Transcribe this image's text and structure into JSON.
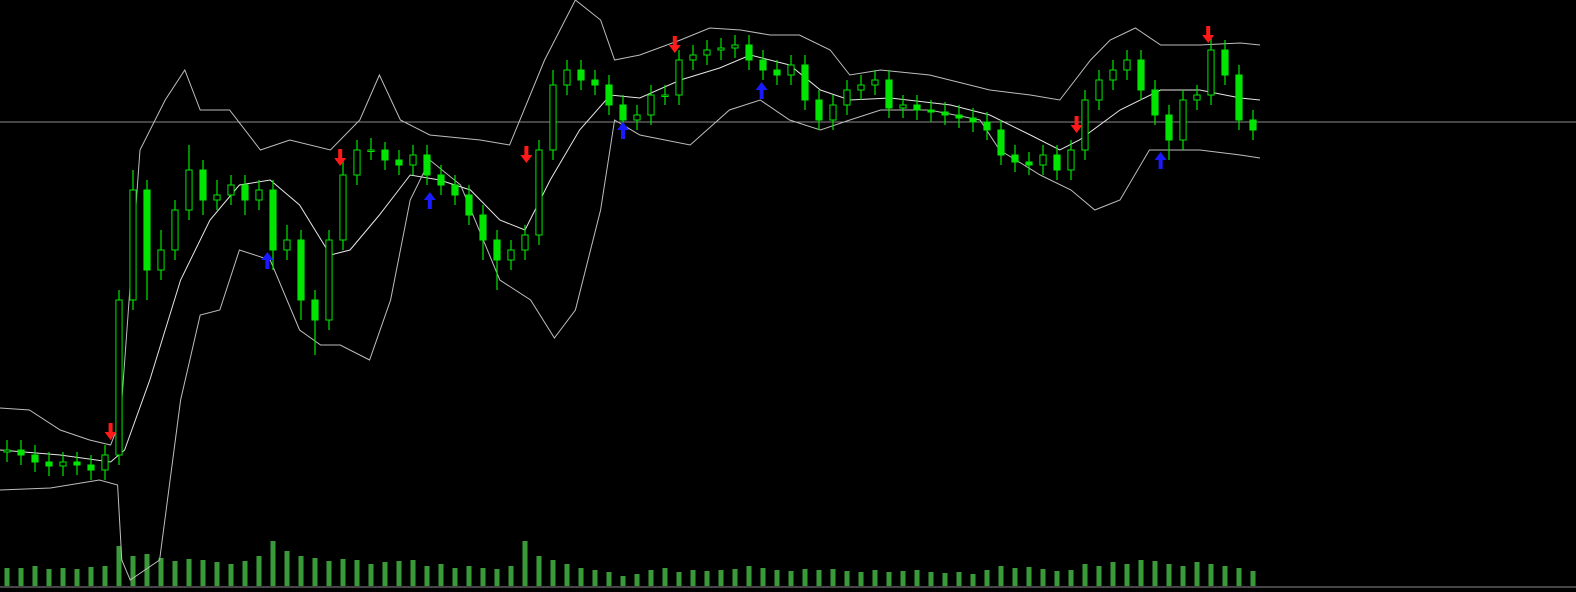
{
  "chart_data": {
    "type": "candlestick",
    "xlim": [
      -0.5,
      89.5
    ],
    "ylim": [
      8,
      600
    ],
    "color": "#00e600",
    "open": [
      148,
      150,
      145,
      138,
      134,
      138,
      135,
      130,
      145,
      300,
      410,
      330,
      350,
      390,
      430,
      400,
      405,
      415,
      400,
      410,
      350,
      360,
      300,
      280,
      360,
      425,
      450,
      450,
      440,
      435,
      445,
      425,
      415,
      405,
      385,
      360,
      340,
      350,
      365,
      450,
      515,
      530,
      520,
      515,
      495,
      480,
      485,
      505,
      505,
      540,
      545,
      550,
      552,
      555,
      540,
      530,
      525,
      535,
      500,
      480,
      495,
      510,
      515,
      520,
      492,
      495,
      490,
      488,
      485,
      482,
      478,
      470,
      445,
      438,
      435,
      445,
      430,
      450,
      500,
      520,
      530,
      540,
      510,
      485,
      460,
      500,
      505,
      550,
      525,
      480
    ],
    "high": [
      160,
      160,
      155,
      148,
      148,
      148,
      145,
      155,
      310,
      430,
      420,
      370,
      400,
      455,
      440,
      420,
      425,
      425,
      420,
      420,
      375,
      370,
      310,
      370,
      440,
      460,
      462,
      458,
      450,
      455,
      455,
      435,
      425,
      415,
      395,
      370,
      360,
      375,
      460,
      530,
      540,
      540,
      530,
      525,
      505,
      495,
      515,
      515,
      550,
      555,
      560,
      562,
      565,
      565,
      550,
      540,
      545,
      545,
      510,
      505,
      520,
      525,
      530,
      530,
      505,
      505,
      500,
      498,
      495,
      492,
      488,
      480,
      455,
      448,
      455,
      455,
      460,
      510,
      530,
      540,
      550,
      550,
      520,
      495,
      510,
      515,
      562,
      560,
      535,
      490
    ],
    "low": [
      138,
      135,
      128,
      124,
      124,
      125,
      120,
      120,
      135,
      290,
      300,
      320,
      340,
      380,
      385,
      390,
      395,
      385,
      390,
      330,
      340,
      280,
      245,
      270,
      350,
      415,
      440,
      430,
      425,
      425,
      415,
      405,
      395,
      375,
      340,
      310,
      330,
      340,
      355,
      440,
      505,
      510,
      505,
      485,
      470,
      470,
      475,
      495,
      495,
      530,
      535,
      540,
      542,
      530,
      520,
      515,
      515,
      490,
      470,
      470,
      485,
      500,
      505,
      482,
      482,
      480,
      478,
      475,
      472,
      468,
      460,
      435,
      428,
      425,
      425,
      420,
      420,
      440,
      490,
      510,
      520,
      500,
      475,
      440,
      450,
      490,
      495,
      515,
      470,
      460
    ],
    "close": [
      150,
      145,
      138,
      134,
      138,
      135,
      130,
      145,
      300,
      410,
      330,
      350,
      390,
      430,
      400,
      405,
      415,
      400,
      410,
      350,
      360,
      300,
      280,
      360,
      425,
      450,
      450,
      440,
      435,
      445,
      425,
      415,
      405,
      385,
      360,
      340,
      350,
      365,
      450,
      515,
      530,
      520,
      515,
      495,
      480,
      485,
      505,
      505,
      540,
      545,
      550,
      552,
      555,
      540,
      530,
      525,
      535,
      500,
      480,
      495,
      510,
      515,
      520,
      492,
      495,
      490,
      488,
      485,
      482,
      478,
      470,
      445,
      438,
      435,
      445,
      430,
      450,
      500,
      520,
      530,
      540,
      510,
      485,
      460,
      500,
      505,
      550,
      525,
      480,
      470
    ],
    "bands": [
      {
        "color": "#bdbdbd",
        "x": [
          -0.5,
          1.6,
          3.8,
          5.9,
          7.4,
          8.1,
          9.5,
          11.3,
          12.7,
          13.8,
          15.9,
          18.1,
          20.2,
          23.1,
          25.2,
          26.6,
          28.1,
          30.2,
          33.8,
          35.9,
          38.4,
          40.6,
          42.4,
          43.4,
          45.2,
          48.1,
          50.2,
          52.4,
          54.5,
          56.6,
          58.8,
          60.2,
          62.4,
          65.9,
          70.2,
          73.1,
          75.2,
          77.4,
          78.8,
          80.6,
          82.4,
          85.2,
          88.1,
          89.5
        ],
        "values": [
          192,
          190,
          170,
          160,
          155,
          180,
          450,
          500,
          530,
          490,
          490,
          450,
          460,
          450,
          480,
          525,
          480,
          465,
          460,
          455,
          540,
          600,
          580,
          540,
          545,
          560,
          572,
          570,
          565,
          565,
          550,
          525,
          530,
          525,
          510,
          505,
          500,
          540,
          560,
          572,
          555,
          555,
          557,
          555
        ]
      },
      {
        "color": "#e6e6e6",
        "x": [
          -0.5,
          3.8,
          7.4,
          8.4,
          10.2,
          12.4,
          14.5,
          16.6,
          18.8,
          20.9,
          23.1,
          24.5,
          26.6,
          28.8,
          30.9,
          33.1,
          35.2,
          37.0,
          38.8,
          40.9,
          43.1,
          45.2,
          48.1,
          50.9,
          53.1,
          55.9,
          58.1,
          60.2,
          63.1,
          67.4,
          70.2,
          73.1,
          75.2,
          76.6,
          79.5,
          82.4,
          85.2,
          88.1,
          89.5
        ],
        "values": [
          150,
          145,
          138,
          150,
          220,
          320,
          380,
          415,
          420,
          395,
          345,
          350,
          385,
          425,
          420,
          410,
          380,
          370,
          420,
          470,
          505,
          502,
          520,
          532,
          545,
          535,
          510,
          500,
          502,
          495,
          485,
          465,
          450,
          460,
          490,
          510,
          510,
          502,
          500
        ]
      },
      {
        "color": "#bdbdbd",
        "x": [
          -0.5,
          3.1,
          6.6,
          7.9,
          8.2,
          8.8,
          10.9,
          12.4,
          13.8,
          15.2,
          16.6,
          18.8,
          20.9,
          22.4,
          23.8,
          25.9,
          27.4,
          28.8,
          30.2,
          32.4,
          35.2,
          37.4,
          39.1,
          40.6,
          42.4,
          43.4,
          45.2,
          48.8,
          51.6,
          53.8,
          55.9,
          58.1,
          60.2,
          62.4,
          65.9,
          69.5,
          70.9,
          73.8,
          76.0,
          77.7,
          79.5,
          81.6,
          83.1,
          85.2,
          88.1,
          89.5
        ],
        "values": [
          110,
          112,
          120,
          115,
          40,
          20,
          40,
          200,
          285,
          290,
          350,
          340,
          270,
          255,
          255,
          240,
          300,
          400,
          440,
          415,
          320,
          300,
          262,
          290,
          390,
          480,
          465,
          455,
          490,
          500,
          480,
          470,
          480,
          490,
          490,
          480,
          450,
          425,
          410,
          390,
          400,
          450,
          450,
          450,
          445,
          442
        ]
      }
    ],
    "signals": [
      {
        "direction": "down",
        "color": "#ff1a1a",
        "x": [
          7.4,
          23.8,
          37.1,
          47.7,
          76.4,
          85.8
        ],
        "values": [
          168,
          442,
          445,
          555,
          475,
          565
        ]
      },
      {
        "direction": "up",
        "color": "#1a1aff",
        "x": [
          18.6,
          30.2,
          44.0,
          53.9,
          82.4
        ],
        "values": [
          340,
          400,
          470,
          510,
          440
        ]
      }
    ],
    "hline": 478,
    "hline_color": "#8a8a8a",
    "volume": {
      "color": "#3a9a3a",
      "ylim": [
        0,
        100
      ],
      "values": [
        18,
        18,
        20,
        17,
        18,
        17,
        19,
        20,
        40,
        30,
        32,
        28,
        25,
        27,
        26,
        24,
        22,
        25,
        30,
        45,
        35,
        30,
        28,
        25,
        27,
        26,
        22,
        24,
        25,
        26,
        20,
        22,
        18,
        20,
        18,
        17,
        20,
        45,
        30,
        26,
        22,
        18,
        16,
        14,
        10,
        12,
        16,
        18,
        14,
        16,
        15,
        16,
        17,
        20,
        18,
        16,
        15,
        17,
        16,
        17,
        15,
        14,
        16,
        14,
        15,
        16,
        14,
        13,
        14,
        12,
        16,
        20,
        18,
        19,
        17,
        15,
        16,
        22,
        20,
        24,
        22,
        26,
        25,
        22,
        20,
        24,
        22,
        20,
        18,
        15
      ]
    }
  }
}
